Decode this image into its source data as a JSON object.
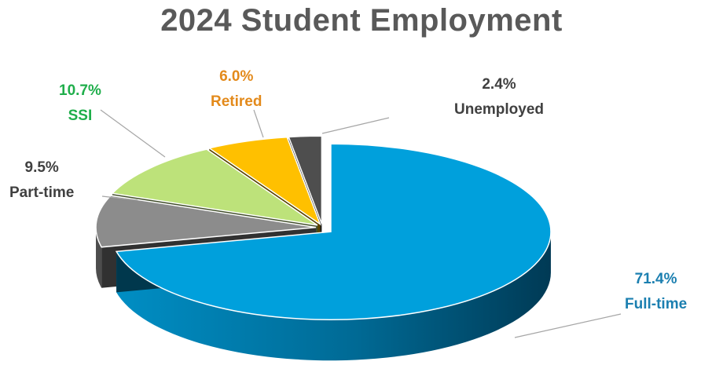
{
  "chart_data": {
    "type": "pie",
    "title": "2024 Student Employment",
    "categories": [
      "Full-time",
      "Part-time",
      "SSI",
      "Retired",
      "Unemployed"
    ],
    "values": [
      71.4,
      9.5,
      10.7,
      6.0,
      2.4
    ],
    "labels": [
      {
        "pct": "71.4%",
        "name": "Full-time"
      },
      {
        "pct": "9.5%",
        "name": "Part-time"
      },
      {
        "pct": "10.7%",
        "name": "SSI"
      },
      {
        "pct": "6.0%",
        "name": "Retired"
      },
      {
        "pct": "2.4%",
        "name": "Unemployed"
      }
    ],
    "colors": [
      "#00a0dc",
      "#8c8c8c",
      "#bde27a",
      "#ffc000",
      "#4e4e4e"
    ],
    "label_colors": [
      "#1b7fb0",
      "#404040",
      "#1fae4b",
      "#e38a1b",
      "#404040"
    ],
    "style": "3d-exploded",
    "legend": "none"
  }
}
